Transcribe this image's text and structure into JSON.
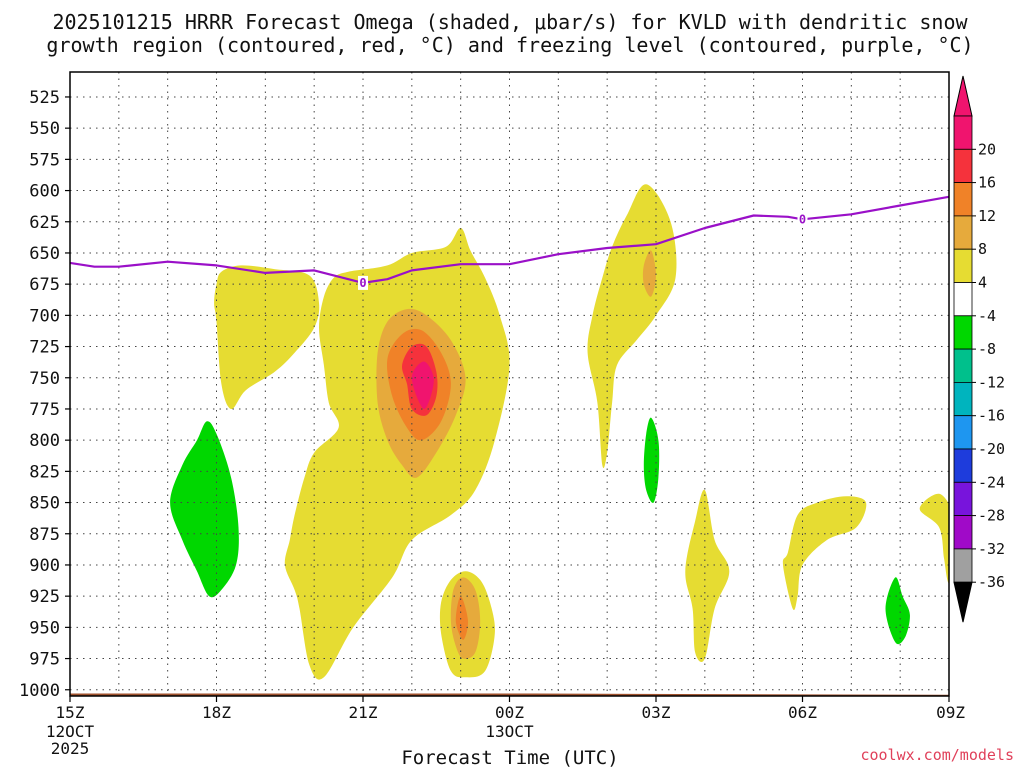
{
  "chart_data": {
    "type": "heatmap",
    "title_lines": [
      "2025101215 HRRR Forecast Omega (shaded, μbar/s) for KVLD with dendritic snow",
      "growth region (contoured, red, °C) and freezing level (contoured, purple, °C)"
    ],
    "xlabel": "Forecast Time (UTC)",
    "ylabel": "",
    "x_range_hours": [
      0,
      18
    ],
    "y_range_hPa": [
      505,
      1005
    ],
    "y_ticks": [
      525,
      550,
      575,
      600,
      625,
      650,
      675,
      700,
      725,
      750,
      775,
      800,
      825,
      850,
      875,
      900,
      925,
      950,
      975,
      1000
    ],
    "x_ticks": [
      {
        "hour": 0,
        "label": "15Z",
        "sublabels": [
          "12OCT",
          "2025"
        ]
      },
      {
        "hour": 3,
        "label": "18Z",
        "sublabels": []
      },
      {
        "hour": 6,
        "label": "21Z",
        "sublabels": []
      },
      {
        "hour": 9,
        "label": "00Z",
        "sublabels": [
          "13OCT"
        ]
      },
      {
        "hour": 12,
        "label": "03Z",
        "sublabels": []
      },
      {
        "hour": 15,
        "label": "06Z",
        "sublabels": []
      },
      {
        "hour": 18,
        "label": "09Z",
        "sublabels": []
      }
    ],
    "colorbar": {
      "levels": [
        20,
        16,
        12,
        8,
        4,
        -4,
        -8,
        -12,
        -16,
        -20,
        -24,
        -28,
        -32,
        -36
      ],
      "colors": [
        "#f0146e",
        "#f5323c",
        "#f08228",
        "#e6aa3c",
        "#e6dc32",
        "#ffffff",
        "#00d700",
        "#00c08c",
        "#00b4be",
        "#1e96f0",
        "#1e3cdc",
        "#7814dc",
        "#a00ac8",
        "#a0a0a0"
      ],
      "top_extend_color": "#f0146e",
      "bottom_extend_color": "#000000"
    },
    "freezing_level": {
      "color": "#9a10c8",
      "label": "0",
      "label_points": [
        {
          "hour": 6.0,
          "hPa": 674
        },
        {
          "hour": 15.0,
          "hPa": 623
        }
      ],
      "points": [
        {
          "hour": 0.0,
          "hPa": 658
        },
        {
          "hour": 0.5,
          "hPa": 661
        },
        {
          "hour": 1.0,
          "hPa": 661
        },
        {
          "hour": 2.0,
          "hPa": 657
        },
        {
          "hour": 3.0,
          "hPa": 660
        },
        {
          "hour": 4.0,
          "hPa": 666
        },
        {
          "hour": 5.0,
          "hPa": 664
        },
        {
          "hour": 5.6,
          "hPa": 670
        },
        {
          "hour": 6.0,
          "hPa": 674
        },
        {
          "hour": 6.5,
          "hPa": 671
        },
        {
          "hour": 7.0,
          "hPa": 664
        },
        {
          "hour": 8.0,
          "hPa": 659
        },
        {
          "hour": 9.0,
          "hPa": 659
        },
        {
          "hour": 10.0,
          "hPa": 651
        },
        {
          "hour": 11.0,
          "hPa": 646
        },
        {
          "hour": 12.0,
          "hPa": 643
        },
        {
          "hour": 13.0,
          "hPa": 630
        },
        {
          "hour": 14.0,
          "hPa": 620
        },
        {
          "hour": 14.7,
          "hPa": 621
        },
        {
          "hour": 15.0,
          "hPa": 623
        },
        {
          "hour": 16.0,
          "hPa": 619
        },
        {
          "hour": 17.0,
          "hPa": 612
        },
        {
          "hour": 18.0,
          "hPa": 605
        }
      ]
    },
    "omega_regions": [
      {
        "name": "omega-region-yellow-main",
        "value": 4,
        "color": "#e6dc32",
        "points": [
          [
            4.9,
            980
          ],
          [
            4.7,
            935
          ],
          [
            4.6,
            920
          ],
          [
            4.4,
            900
          ],
          [
            4.5,
            880
          ],
          [
            4.6,
            860
          ],
          [
            4.8,
            830
          ],
          [
            5.0,
            810
          ],
          [
            5.5,
            790
          ],
          [
            5.3,
            770
          ],
          [
            5.2,
            740
          ],
          [
            5.1,
            710
          ],
          [
            5.2,
            685
          ],
          [
            5.4,
            670
          ],
          [
            5.7,
            665
          ],
          [
            6.5,
            660
          ],
          [
            7.0,
            650
          ],
          [
            7.7,
            645
          ],
          [
            8.0,
            630
          ],
          [
            8.2,
            648
          ],
          [
            8.5,
            670
          ],
          [
            8.8,
            700
          ],
          [
            9.0,
            740
          ],
          [
            8.7,
            800
          ],
          [
            8.3,
            840
          ],
          [
            7.8,
            860
          ],
          [
            7.0,
            880
          ],
          [
            6.6,
            910
          ],
          [
            5.8,
            950
          ],
          [
            5.2,
            990
          ]
        ]
      },
      {
        "name": "omega-region-yellow-left-lobe",
        "value": 4,
        "color": "#e6dc32",
        "points": [
          [
            3.0,
            705
          ],
          [
            2.95,
            690
          ],
          [
            3.0,
            675
          ],
          [
            3.1,
            665
          ],
          [
            3.5,
            660
          ],
          [
            4.2,
            663
          ],
          [
            4.9,
            668
          ],
          [
            5.1,
            690
          ],
          [
            5.0,
            710
          ],
          [
            4.6,
            730
          ],
          [
            4.2,
            745
          ],
          [
            3.6,
            760
          ],
          [
            3.3,
            775
          ],
          [
            3.1,
            755
          ]
        ]
      },
      {
        "name": "omega-region-orange-outer",
        "value": 8,
        "color": "#e6aa3c",
        "points": [
          [
            6.3,
            730
          ],
          [
            6.5,
            705
          ],
          [
            6.9,
            695
          ],
          [
            7.3,
            700
          ],
          [
            7.8,
            720
          ],
          [
            8.1,
            750
          ],
          [
            7.9,
            780
          ],
          [
            7.5,
            810
          ],
          [
            7.1,
            830
          ],
          [
            6.8,
            820
          ],
          [
            6.5,
            800
          ],
          [
            6.3,
            770
          ]
        ]
      },
      {
        "name": "omega-region-orange-mid",
        "value": 12,
        "color": "#f08228",
        "points": [
          [
            6.5,
            735
          ],
          [
            6.8,
            715
          ],
          [
            7.2,
            712
          ],
          [
            7.6,
            730
          ],
          [
            7.8,
            755
          ],
          [
            7.6,
            785
          ],
          [
            7.2,
            800
          ],
          [
            6.9,
            790
          ],
          [
            6.6,
            765
          ]
        ]
      },
      {
        "name": "omega-region-red",
        "value": 16,
        "color": "#f5323c",
        "points": [
          [
            6.8,
            740
          ],
          [
            7.0,
            725
          ],
          [
            7.3,
            725
          ],
          [
            7.5,
            745
          ],
          [
            7.5,
            765
          ],
          [
            7.3,
            780
          ],
          [
            7.0,
            775
          ],
          [
            6.9,
            755
          ]
        ]
      },
      {
        "name": "omega-region-magenta",
        "value": 20,
        "color": "#f0146e",
        "points": [
          [
            7.0,
            750
          ],
          [
            7.25,
            737
          ],
          [
            7.45,
            752
          ],
          [
            7.25,
            775
          ]
        ]
      },
      {
        "name": "omega-region-yellow-center-low",
        "value": 4,
        "color": "#e6dc32",
        "points": [
          [
            7.6,
            955
          ],
          [
            7.6,
            930
          ],
          [
            7.8,
            912
          ],
          [
            8.1,
            905
          ],
          [
            8.4,
            912
          ],
          [
            8.6,
            930
          ],
          [
            8.7,
            955
          ],
          [
            8.5,
            985
          ],
          [
            8.1,
            990
          ],
          [
            7.8,
            985
          ]
        ]
      },
      {
        "name": "omega-region-orange-center-low",
        "value": 8,
        "color": "#e6aa3c",
        "points": [
          [
            7.8,
            945
          ],
          [
            7.85,
            920
          ],
          [
            8.05,
            910
          ],
          [
            8.3,
            920
          ],
          [
            8.4,
            945
          ],
          [
            8.3,
            970
          ],
          [
            8.05,
            975
          ],
          [
            7.9,
            965
          ]
        ]
      },
      {
        "name": "omega-region-red-center-low",
        "value": 12,
        "color": "#f08228",
        "points": [
          [
            7.9,
            945
          ],
          [
            8.0,
            925
          ],
          [
            8.15,
            945
          ],
          [
            8.05,
            960
          ]
        ]
      },
      {
        "name": "omega-region-yellow-03z-column",
        "value": 4,
        "color": "#e6dc32",
        "points": [
          [
            10.6,
            730
          ],
          [
            10.7,
            700
          ],
          [
            10.9,
            670
          ],
          [
            11.1,
            645
          ],
          [
            11.4,
            620
          ],
          [
            11.8,
            595
          ],
          [
            12.3,
            625
          ],
          [
            12.4,
            670
          ],
          [
            12.0,
            700
          ],
          [
            11.6,
            720
          ],
          [
            11.2,
            740
          ],
          [
            11.1,
            770
          ],
          [
            11.0,
            810
          ],
          [
            10.9,
            820
          ],
          [
            10.8,
            770
          ]
        ]
      },
      {
        "name": "omega-region-orange-03z-small",
        "value": 8,
        "color": "#e6aa3c",
        "points": [
          [
            11.75,
            660
          ],
          [
            11.9,
            648
          ],
          [
            12.0,
            668
          ],
          [
            11.9,
            685
          ],
          [
            11.75,
            675
          ]
        ]
      },
      {
        "name": "omega-region-yellow-03z-low",
        "value": 4,
        "color": "#e6dc32",
        "points": [
          [
            12.6,
            905
          ],
          [
            12.8,
            865
          ],
          [
            13.0,
            840
          ],
          [
            13.2,
            880
          ],
          [
            13.5,
            905
          ],
          [
            13.2,
            935
          ],
          [
            13.0,
            975
          ],
          [
            12.8,
            970
          ],
          [
            12.75,
            935
          ]
        ]
      },
      {
        "name": "omega-region-yellow-05z",
        "value": 4,
        "color": "#e6dc32",
        "points": [
          [
            14.7,
            890
          ],
          [
            14.9,
            860
          ],
          [
            15.3,
            850
          ],
          [
            15.9,
            845
          ],
          [
            16.3,
            850
          ],
          [
            16.1,
            870
          ],
          [
            15.5,
            880
          ],
          [
            15.0,
            900
          ],
          [
            14.9,
            925
          ],
          [
            14.8,
            935
          ],
          [
            14.6,
            900
          ]
        ]
      },
      {
        "name": "omega-region-yellow-08z",
        "value": 4,
        "color": "#e6dc32",
        "points": [
          [
            17.4,
            855
          ],
          [
            17.8,
            843
          ],
          [
            18.1,
            860
          ],
          [
            18.1,
            880
          ],
          [
            18.2,
            905
          ],
          [
            18.0,
            915
          ],
          [
            17.9,
            895
          ],
          [
            17.8,
            870
          ]
        ]
      },
      {
        "name": "omega-region-green-17z",
        "value": -4,
        "color": "#00d700",
        "points": [
          [
            2.05,
            850
          ],
          [
            2.3,
            820
          ],
          [
            2.6,
            800
          ],
          [
            2.8,
            785
          ],
          [
            3.0,
            795
          ],
          [
            3.3,
            830
          ],
          [
            3.45,
            870
          ],
          [
            3.4,
            900
          ],
          [
            3.1,
            920
          ],
          [
            2.85,
            925
          ],
          [
            2.6,
            905
          ],
          [
            2.3,
            880
          ]
        ]
      },
      {
        "name": "omega-region-green-02z",
        "value": -4,
        "color": "#00d700",
        "points": [
          [
            11.75,
            820
          ],
          [
            11.8,
            795
          ],
          [
            11.9,
            782
          ],
          [
            12.05,
            800
          ],
          [
            12.05,
            830
          ],
          [
            11.95,
            850
          ],
          [
            11.8,
            840
          ]
        ]
      },
      {
        "name": "omega-region-green-07z",
        "value": -4,
        "color": "#00d700",
        "points": [
          [
            16.7,
            935
          ],
          [
            16.9,
            910
          ],
          [
            17.05,
            925
          ],
          [
            17.2,
            940
          ],
          [
            17.1,
            958
          ],
          [
            16.9,
            962
          ]
        ]
      }
    ],
    "terrain": {
      "name": "surface-terrain",
      "color": "#a0522d",
      "points": [
        [
          0,
          1003
        ],
        [
          9.5,
          1003
        ],
        [
          18,
          1004
        ]
      ]
    },
    "credit": "coolwx.com/models"
  }
}
